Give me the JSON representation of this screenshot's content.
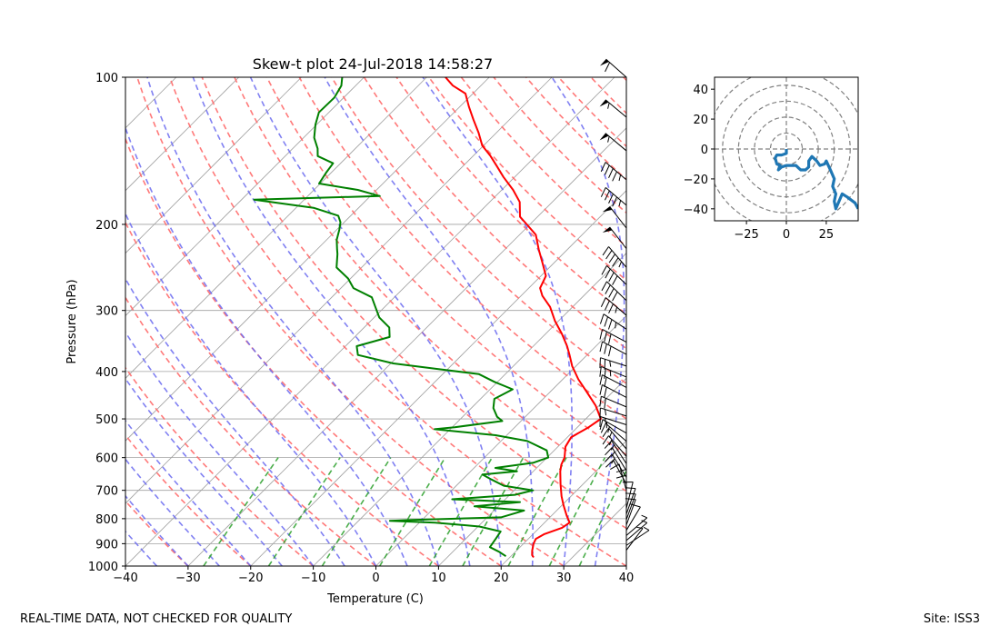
{
  "main": {
    "title": "Skew-t plot 24-Jul-2018 14:58:27",
    "xlabel": "Temperature (C)",
    "ylabel": "Pressure (hPa)"
  },
  "footer": {
    "left": "REAL-TIME DATA, NOT CHECKED FOR QUALITY",
    "right": "Site: ISS3"
  },
  "colors": {
    "temperature": "#ff0000",
    "dewpoint": "#008000",
    "dry_adiabat": "#ff6a6a",
    "moist_adiabat": "#6a6af0",
    "mixing_ratio": "#2ca02c",
    "isotherm": "#a0a0a0",
    "hodograph": "#1f77b4"
  },
  "chart_data": [
    {
      "type": "line",
      "name": "skew-t",
      "title": "Skew-t plot 24-Jul-2018 14:58:27",
      "xlabel": "Temperature (C)",
      "ylabel": "Pressure (hPa)",
      "xlim": [
        -40,
        40
      ],
      "ylim": [
        1000,
        100
      ],
      "yscale": "log",
      "xticks": [
        -40,
        -30,
        -20,
        -10,
        0,
        10,
        20,
        30,
        40
      ],
      "yticks": [
        1000,
        900,
        800,
        700,
        600,
        500,
        400,
        300,
        200,
        100
      ],
      "grid": true,
      "series": [
        {
          "role": "temperature",
          "points": [
            [
              23.8,
              960
            ],
            [
              23.2,
              950
            ],
            [
              22.5,
              930
            ],
            [
              21.6,
              900
            ],
            [
              21.2,
              880
            ],
            [
              21.8,
              860
            ],
            [
              23.6,
              835
            ],
            [
              24.0,
              815
            ],
            [
              22.5,
              790
            ],
            [
              20.2,
              750
            ],
            [
              18.5,
              720
            ],
            [
              16.4,
              680
            ],
            [
              14.3,
              640
            ],
            [
              13.4,
              620
            ],
            [
              12.8,
              600
            ],
            [
              11.2,
              570
            ],
            [
              10.6,
              545
            ],
            [
              11.8,
              520
            ],
            [
              12.4,
              500
            ],
            [
              9.5,
              470
            ],
            [
              5.8,
              440
            ],
            [
              2.5,
              415
            ],
            [
              -0.6,
              390
            ],
            [
              -2.8,
              370
            ],
            [
              -4.6,
              355
            ],
            [
              -7.4,
              335
            ],
            [
              -10.6,
              315
            ],
            [
              -13.6,
              295
            ],
            [
              -16.6,
              280
            ],
            [
              -18.2,
              270
            ],
            [
              -19.2,
              255
            ],
            [
              -21.8,
              240
            ],
            [
              -24.6,
              225
            ],
            [
              -27.4,
              210
            ],
            [
              -30.5,
              200
            ],
            [
              -32.8,
              193
            ],
            [
              -35.2,
              180
            ],
            [
              -38.2,
              170
            ],
            [
              -41.8,
              160
            ],
            [
              -44.6,
              152
            ],
            [
              -47.2,
              145
            ],
            [
              -50.2,
              138
            ],
            [
              -52.8,
              130
            ],
            [
              -55.8,
              122
            ],
            [
              -58.5,
              115
            ],
            [
              -61.2,
              108
            ],
            [
              -64.5,
              104
            ],
            [
              -67.0,
              100
            ]
          ]
        },
        {
          "role": "dewpoint",
          "points": [
            [
              19.2,
              955
            ],
            [
              17.4,
              935
            ],
            [
              15.2,
              915
            ],
            [
              14.8,
              880
            ],
            [
              14.4,
              850
            ],
            [
              10.2,
              830
            ],
            [
              2.5,
              815
            ],
            [
              -5.0,
              808
            ],
            [
              -1.5,
              805
            ],
            [
              12.2,
              795
            ],
            [
              14.8,
              770
            ],
            [
              6.2,
              755
            ],
            [
              12.8,
              740
            ],
            [
              1.5,
              730
            ],
            [
              10.8,
              715
            ],
            [
              13.0,
              700
            ],
            [
              7.6,
              685
            ],
            [
              4.6,
              665
            ],
            [
              2.4,
              650
            ],
            [
              7.4,
              640
            ],
            [
              3.4,
              630
            ],
            [
              8.6,
              615
            ],
            [
              10.2,
              600
            ],
            [
              8.8,
              580
            ],
            [
              4.2,
              555
            ],
            [
              -1.8,
              540
            ],
            [
              -12.5,
              525
            ],
            [
              -9.6,
              520
            ],
            [
              -3.0,
              505
            ],
            [
              -4.5,
              495
            ],
            [
              -6.5,
              475
            ],
            [
              -7.8,
              455
            ],
            [
              -6.4,
              435
            ],
            [
              -10.5,
              420
            ],
            [
              -14.2,
              405
            ],
            [
              -21.8,
              395
            ],
            [
              -29.6,
              385
            ],
            [
              -36.6,
              370
            ],
            [
              -38.2,
              355
            ],
            [
              -34.4,
              340
            ],
            [
              -36.0,
              325
            ],
            [
              -39.2,
              310
            ],
            [
              -41.5,
              295
            ],
            [
              -43.6,
              282
            ],
            [
              -48.0,
              270
            ],
            [
              -50.4,
              258
            ],
            [
              -54.0,
              245
            ],
            [
              -56.0,
              230
            ],
            [
              -56.8,
              225
            ],
            [
              -58.4,
              215
            ],
            [
              -59.6,
              205
            ],
            [
              -60.6,
              198
            ],
            [
              -62.0,
              192
            ],
            [
              -67.2,
              185
            ],
            [
              -78.0,
              178
            ],
            [
              -58.5,
              175
            ],
            [
              -63.0,
              170
            ],
            [
              -70.2,
              165
            ],
            [
              -70.8,
              157
            ],
            [
              -71.2,
              150
            ],
            [
              -74.8,
              145
            ],
            [
              -76.0,
              140
            ],
            [
              -78.3,
              133
            ],
            [
              -80.2,
              125
            ],
            [
              -81.6,
              118
            ],
            [
              -81.5,
              110
            ],
            [
              -82.3,
              104
            ],
            [
              -83.5,
              100
            ]
          ]
        }
      ],
      "barbs": true
    },
    {
      "type": "line",
      "name": "hodograph",
      "xlim": [
        -45,
        45
      ],
      "ylim": [
        -48,
        48
      ],
      "xticks": [
        -25,
        0,
        25
      ],
      "yticks": [
        -40,
        -20,
        0,
        20,
        40
      ],
      "rings": [
        10,
        20,
        30,
        40,
        50
      ],
      "series": [
        {
          "role": "wind",
          "points": [
            [
              0,
              0
            ],
            [
              0,
              -3
            ],
            [
              -3,
              -4
            ],
            [
              -6,
              -4
            ],
            [
              -7,
              -6
            ],
            [
              -6,
              -10
            ],
            [
              -4,
              -11
            ],
            [
              -5,
              -14
            ],
            [
              -3,
              -12
            ],
            [
              0,
              -11
            ],
            [
              3,
              -11
            ],
            [
              6,
              -11
            ],
            [
              8,
              -13
            ],
            [
              9,
              -14
            ],
            [
              12,
              -14
            ],
            [
              14,
              -12
            ],
            [
              14,
              -8
            ],
            [
              16,
              -5
            ],
            [
              19,
              -8
            ],
            [
              21,
              -11
            ],
            [
              24,
              -10
            ],
            [
              25,
              -8
            ],
            [
              28,
              -15
            ],
            [
              30,
              -20
            ],
            [
              29,
              -25
            ],
            [
              31,
              -30
            ],
            [
              30,
              -35
            ],
            [
              31,
              -40
            ],
            [
              35,
              -30
            ],
            [
              38,
              -32
            ],
            [
              43,
              -36
            ],
            [
              45,
              -40
            ]
          ]
        }
      ]
    }
  ]
}
